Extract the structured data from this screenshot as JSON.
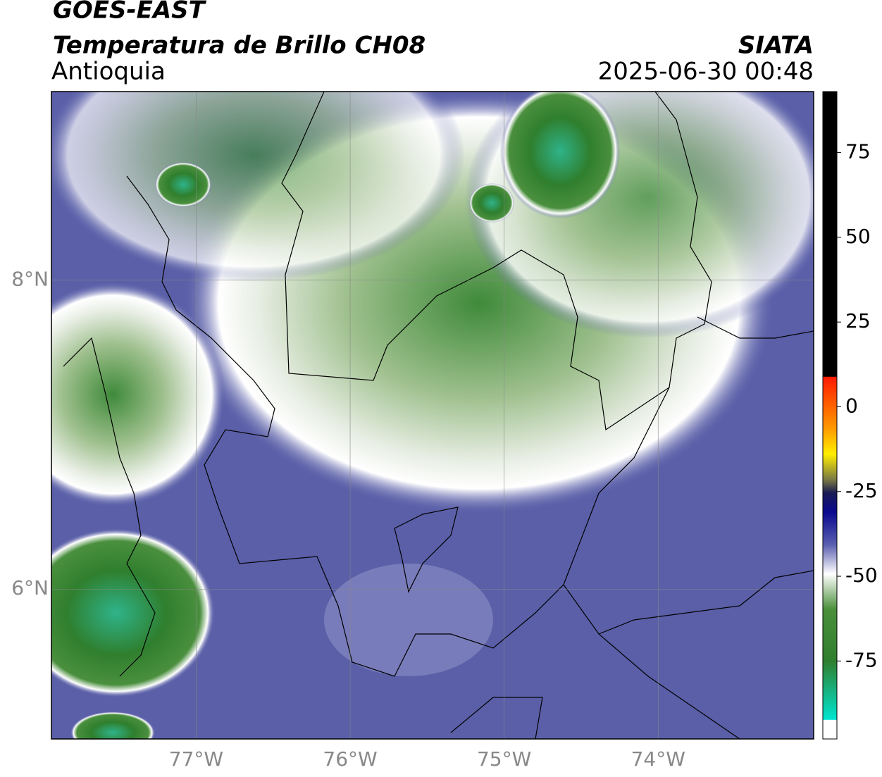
{
  "title": "GOES-EAST",
  "subtitle": "Temperatura de Brillo CH08",
  "region": "Antioquia",
  "source": "SIATA",
  "timestamp": "2025-06-30 00:48",
  "map": {
    "lonlim": [
      -77.94,
      -72.99
    ],
    "latlim": [
      5.03,
      9.22
    ],
    "lon_ticks": [
      {
        "value": -77,
        "label": "77°W"
      },
      {
        "value": -76,
        "label": "76°W"
      },
      {
        "value": -75,
        "label": "75°W"
      },
      {
        "value": -74,
        "label": "74°W"
      }
    ],
    "lat_ticks": [
      {
        "value": 8,
        "label": "8°N"
      },
      {
        "value": 6,
        "label": "6°N"
      }
    ]
  },
  "colorbar": {
    "lim": [
      -98,
      93
    ],
    "ticks": [
      75,
      50,
      25,
      0,
      -25,
      -50,
      -75
    ]
  }
}
